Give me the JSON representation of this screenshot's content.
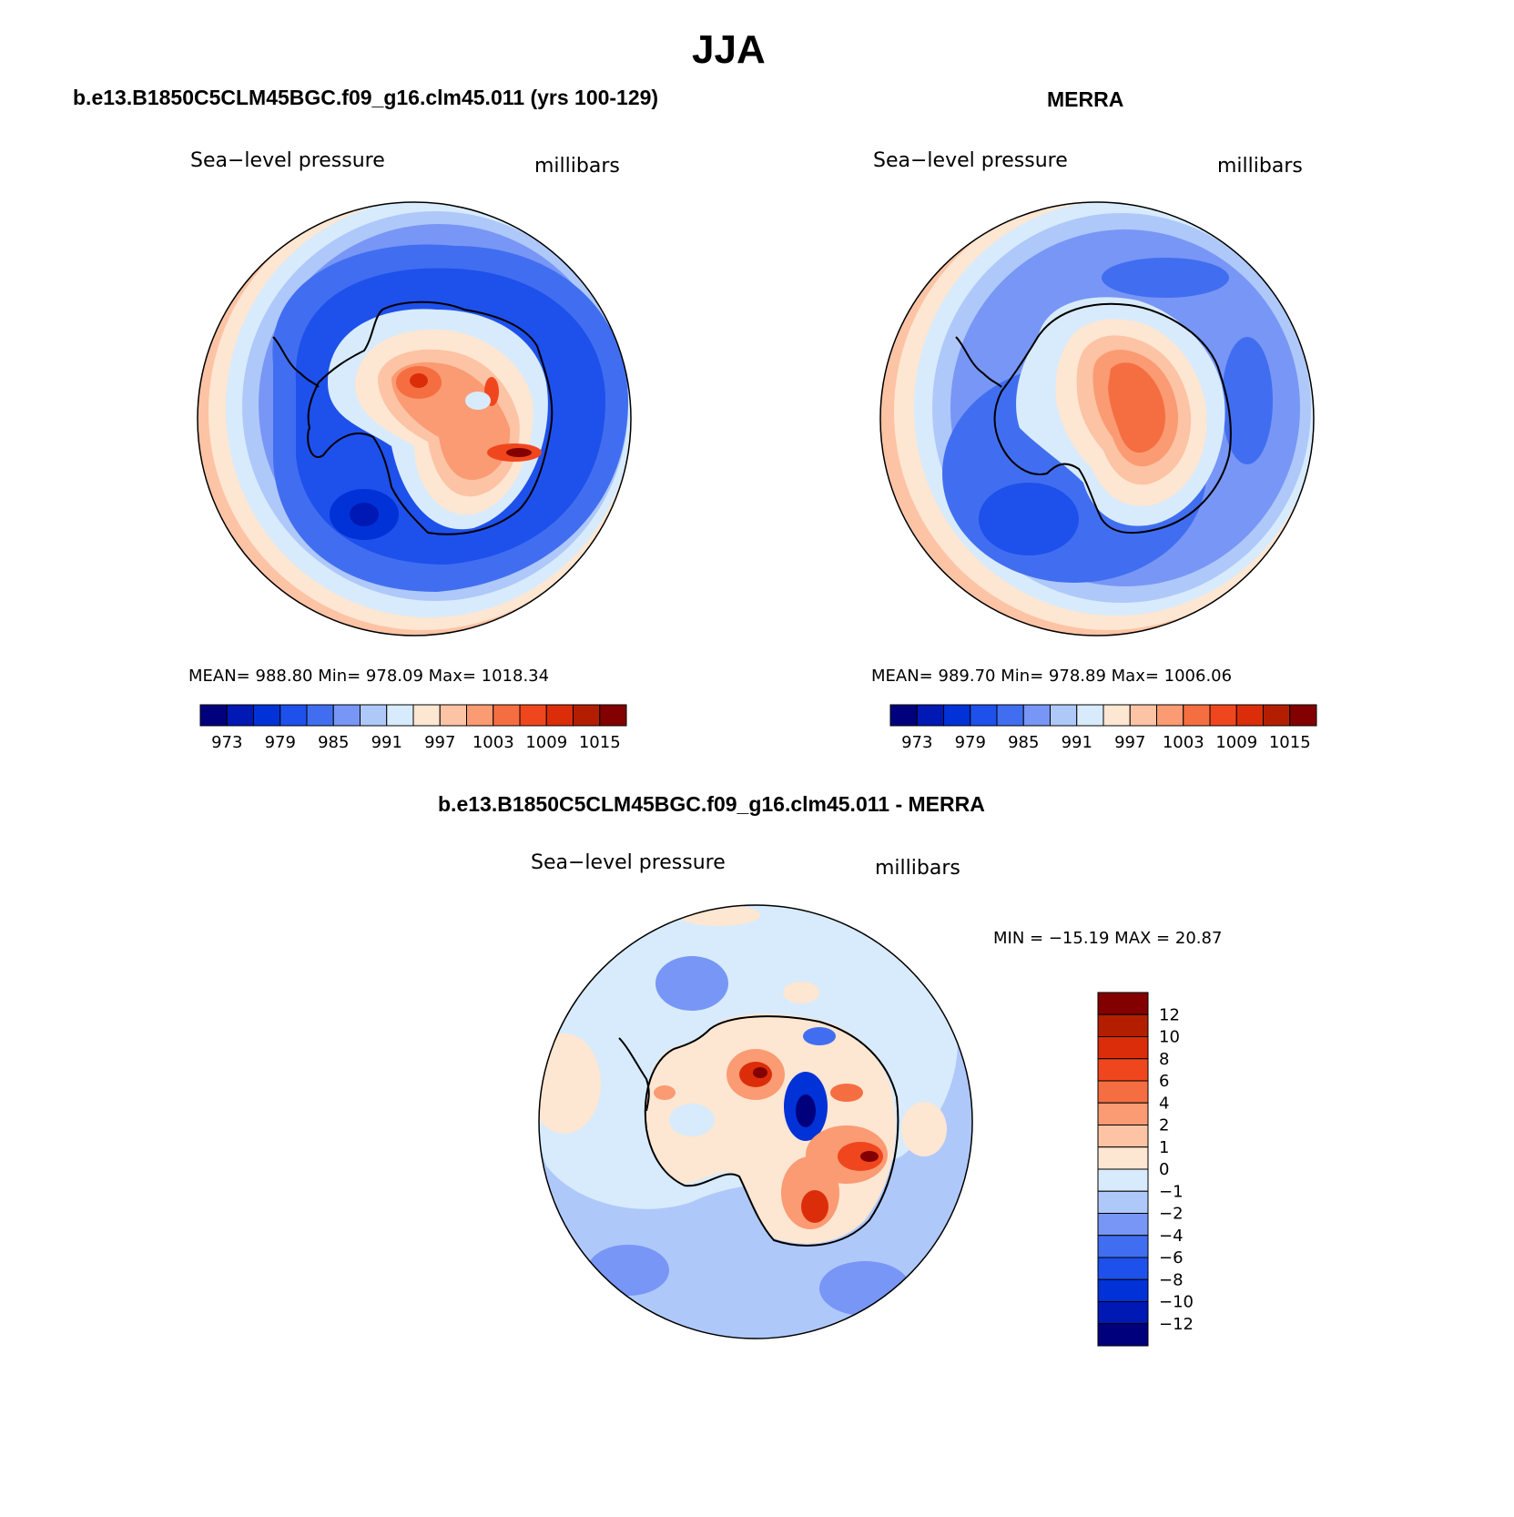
{
  "figure": {
    "season_title": "JJA",
    "diff_title": "b.e13.B1850C5CLM45BGC.f09_g16.clm45.011 - MERRA"
  },
  "panels": [
    {
      "id": "model",
      "title": "b.e13.B1850C5CLM45BGC.f09_g16.clm45.011 (yrs 100-129)",
      "variable": "Sea−level pressure",
      "units": "millibars",
      "stats": "MEAN= 988.80   Min= 978.09   Max= 1018.34",
      "colorbar_ticks": [
        "973",
        "979",
        "985",
        "991",
        "997",
        "1003",
        "1009",
        "1015"
      ]
    },
    {
      "id": "merra",
      "title": "MERRA",
      "variable": "Sea−level pressure",
      "units": "millibars",
      "stats": "MEAN= 989.70   Min= 978.89   Max= 1006.06",
      "colorbar_ticks": [
        "973",
        "979",
        "985",
        "991",
        "997",
        "1003",
        "1009",
        "1015"
      ]
    }
  ],
  "difference": {
    "variable": "Sea−level pressure",
    "units": "millibars",
    "minmax": "MIN = −15.19 MAX =   20.87",
    "colorbar_labels": [
      "12",
      "10",
      "8",
      "6",
      "4",
      "2",
      "1",
      "0",
      "−1",
      "−2",
      "−4",
      "−6",
      "−8",
      "−10",
      "−12"
    ]
  },
  "palettes": {
    "slp": [
      "#00007d",
      "#0019b4",
      "#0032d7",
      "#1e50eb",
      "#416ef0",
      "#7896f5",
      "#afc8fa",
      "#d7ebfc",
      "#fde6d2",
      "#fcc3a5",
      "#fa9b73",
      "#f56e41",
      "#f0461e",
      "#dc2d0a",
      "#b41e00",
      "#820000"
    ],
    "diff": [
      "#820000",
      "#b41e00",
      "#dc2d0a",
      "#f0461e",
      "#f56e41",
      "#fa9b73",
      "#fcc3a5",
      "#fde6d2",
      "#d7ebfc",
      "#afc8fa",
      "#7896f5",
      "#416ef0",
      "#1e50eb",
      "#0032d7",
      "#0019b4",
      "#00007d"
    ]
  }
}
